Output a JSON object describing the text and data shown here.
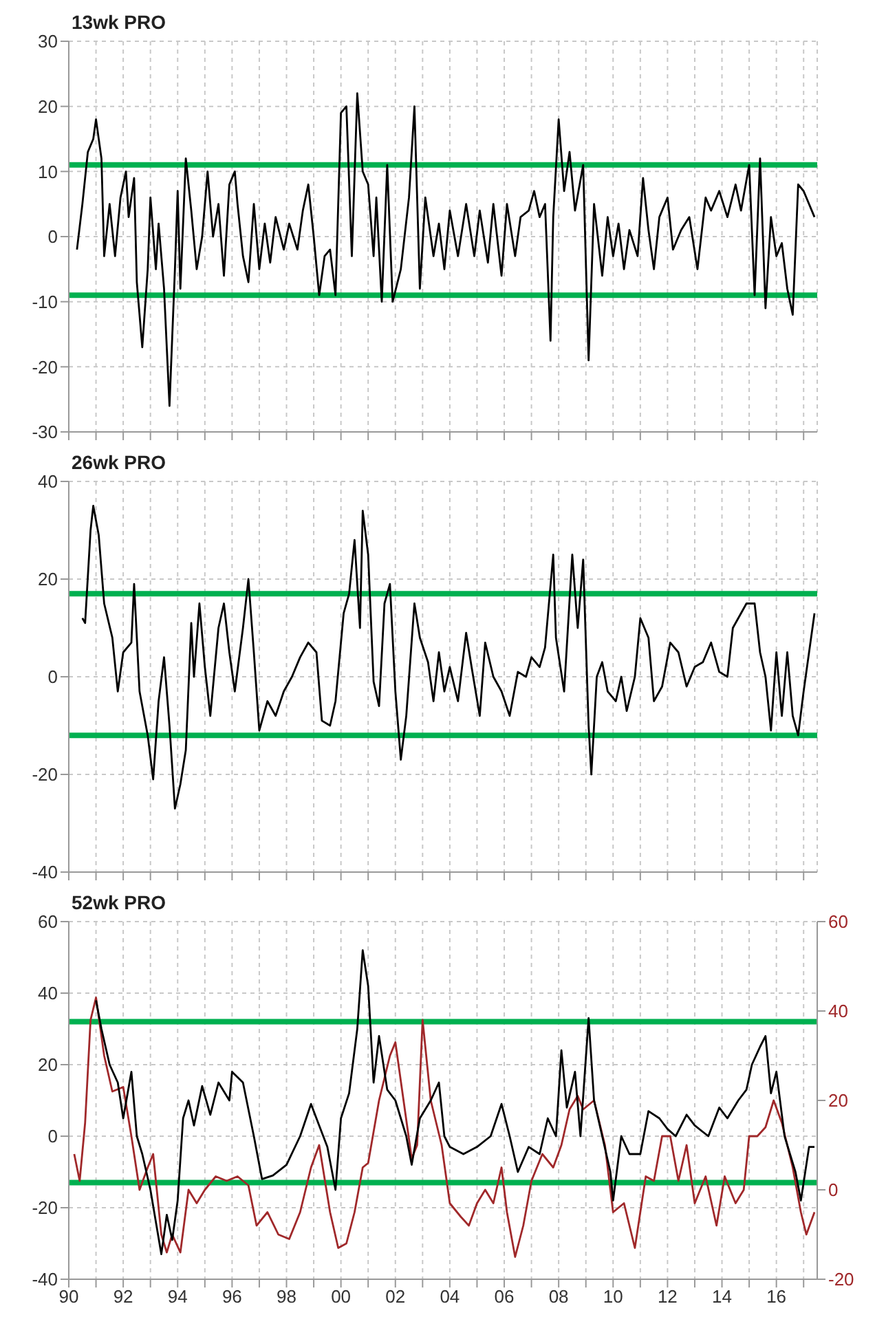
{
  "chart_data": [
    {
      "type": "line",
      "title": "13wk PRO",
      "tick_labels": "y",
      "grid": true,
      "xlim": [
        1990,
        2017.5
      ],
      "xticks": [
        {
          "value": 1990,
          "label": null
        },
        {
          "value": 1991,
          "label": null
        },
        {
          "value": 1992,
          "label": null
        },
        {
          "value": 1993,
          "label": null
        },
        {
          "value": 1994,
          "label": null
        },
        {
          "value": 1995,
          "label": null
        },
        {
          "value": 1996,
          "label": null
        },
        {
          "value": 1997,
          "label": null
        },
        {
          "value": 1998,
          "label": null
        },
        {
          "value": 1999,
          "label": null
        },
        {
          "value": 2000,
          "label": null
        },
        {
          "value": 2001,
          "label": null
        },
        {
          "value": 2002,
          "label": null
        },
        {
          "value": 2003,
          "label": null
        },
        {
          "value": 2004,
          "label": null
        },
        {
          "value": 2005,
          "label": null
        },
        {
          "value": 2006,
          "label": null
        },
        {
          "value": 2007,
          "label": null
        },
        {
          "value": 2008,
          "label": null
        },
        {
          "value": 2009,
          "label": null
        },
        {
          "value": 2010,
          "label": null
        },
        {
          "value": 2011,
          "label": null
        },
        {
          "value": 2012,
          "label": null
        },
        {
          "value": 2013,
          "label": null
        },
        {
          "value": 2014,
          "label": null
        },
        {
          "value": 2015,
          "label": null
        },
        {
          "value": 2016,
          "label": null
        },
        {
          "value": 2017,
          "label": null
        }
      ],
      "ylim": [
        -30,
        30
      ],
      "yticks": [
        -30,
        -20,
        -10,
        0,
        10,
        20,
        30
      ],
      "ref_lines": [
        {
          "axis": "y",
          "value": 11,
          "color": "#00b050"
        },
        {
          "axis": "y",
          "value": -9,
          "color": "#00b050"
        }
      ],
      "series": [
        {
          "color": "#000000",
          "x": [
            1990.3,
            1990.5,
            1990.7,
            1990.9,
            1991.0,
            1991.2,
            1991.3,
            1991.5,
            1991.7,
            1991.9,
            1992.1,
            1992.2,
            1992.4,
            1992.5,
            1992.7,
            1992.9,
            1993.0,
            1993.2,
            1993.3,
            1993.5,
            1993.7,
            1993.9,
            1994.0,
            1994.1,
            1994.3,
            1994.5,
            1994.7,
            1994.9,
            1995.1,
            1995.3,
            1995.5,
            1995.7,
            1995.9,
            1996.1,
            1996.2,
            1996.4,
            1996.6,
            1996.8,
            1997.0,
            1997.2,
            1997.4,
            1997.6,
            1997.9,
            1998.1,
            1998.4,
            1998.6,
            1998.8,
            1999.0,
            1999.2,
            1999.4,
            1999.6,
            1999.8,
            2000.0,
            2000.2,
            2000.4,
            2000.6,
            2000.8,
            2001.0,
            2001.2,
            2001.3,
            2001.5,
            2001.7,
            2001.9,
            2002.2,
            2002.5,
            2002.7,
            2002.9,
            2003.1,
            2003.4,
            2003.6,
            2003.8,
            2004.0,
            2004.3,
            2004.6,
            2004.9,
            2005.1,
            2005.4,
            2005.6,
            2005.9,
            2006.1,
            2006.4,
            2006.6,
            2006.9,
            2007.1,
            2007.3,
            2007.5,
            2007.7,
            2007.8,
            2008.0,
            2008.2,
            2008.4,
            2008.6,
            2008.9,
            2009.1,
            2009.3,
            2009.6,
            2009.8,
            2010.0,
            2010.2,
            2010.4,
            2010.6,
            2010.9,
            2011.1,
            2011.3,
            2011.5,
            2011.7,
            2012.0,
            2012.2,
            2012.5,
            2012.8,
            2013.1,
            2013.4,
            2013.6,
            2013.9,
            2014.2,
            2014.5,
            2014.7,
            2015.0,
            2015.2,
            2015.4,
            2015.6,
            2015.8,
            2016.0,
            2016.2,
            2016.4,
            2016.6,
            2016.8,
            2017.0,
            2017.4
          ],
          "values": [
            -2,
            5,
            13,
            15,
            18,
            12,
            -3,
            5,
            -3,
            6,
            10,
            3,
            9,
            -7,
            -17,
            -5,
            6,
            -5,
            2,
            -8,
            -26,
            -5,
            7,
            -8,
            12,
            4,
            -5,
            0,
            10,
            0,
            5,
            -6,
            8,
            10,
            5,
            -3,
            -7,
            5,
            -5,
            2,
            -4,
            3,
            -2,
            2,
            -2,
            4,
            8,
            0,
            -9,
            -3,
            -2,
            -9,
            19,
            20,
            -3,
            22,
            10,
            8,
            -3,
            6,
            -10,
            11,
            -10,
            -5,
            6,
            20,
            -8,
            6,
            -3,
            2,
            -5,
            4,
            -3,
            5,
            -3,
            4,
            -4,
            5,
            -6,
            5,
            -3,
            3,
            4,
            7,
            3,
            5,
            -16,
            3,
            18,
            7,
            13,
            4,
            11,
            -19,
            5,
            -6,
            3,
            -3,
            2,
            -5,
            1,
            -3,
            9,
            1,
            -5,
            3,
            6,
            -2,
            1,
            3,
            -5,
            6,
            4,
            7,
            3,
            8,
            4,
            11,
            -9,
            12,
            -11,
            3,
            -3,
            -1,
            -8,
            -12,
            8,
            7,
            3
          ]
        }
      ]
    },
    {
      "type": "line",
      "title": "26wk PRO",
      "tick_labels": "y",
      "grid": true,
      "xlim": [
        1990,
        2017.5
      ],
      "xticks": [
        {
          "value": 1990,
          "label": null
        },
        {
          "value": 1991,
          "label": null
        },
        {
          "value": 1992,
          "label": null
        },
        {
          "value": 1993,
          "label": null
        },
        {
          "value": 1994,
          "label": null
        },
        {
          "value": 1995,
          "label": null
        },
        {
          "value": 1996,
          "label": null
        },
        {
          "value": 1997,
          "label": null
        },
        {
          "value": 1998,
          "label": null
        },
        {
          "value": 1999,
          "label": null
        },
        {
          "value": 2000,
          "label": null
        },
        {
          "value": 2001,
          "label": null
        },
        {
          "value": 2002,
          "label": null
        },
        {
          "value": 2003,
          "label": null
        },
        {
          "value": 2004,
          "label": null
        },
        {
          "value": 2005,
          "label": null
        },
        {
          "value": 2006,
          "label": null
        },
        {
          "value": 2007,
          "label": null
        },
        {
          "value": 2008,
          "label": null
        },
        {
          "value": 2009,
          "label": null
        },
        {
          "value": 2010,
          "label": null
        },
        {
          "value": 2011,
          "label": null
        },
        {
          "value": 2012,
          "label": null
        },
        {
          "value": 2013,
          "label": null
        },
        {
          "value": 2014,
          "label": null
        },
        {
          "value": 2015,
          "label": null
        },
        {
          "value": 2016,
          "label": null
        },
        {
          "value": 2017,
          "label": null
        }
      ],
      "ylim": [
        -40,
        40
      ],
      "yticks": [
        -40,
        -20,
        0,
        20,
        40
      ],
      "ref_lines": [
        {
          "axis": "y",
          "value": 17,
          "color": "#00b050"
        },
        {
          "axis": "y",
          "value": -12,
          "color": "#00b050"
        }
      ],
      "series": [
        {
          "color": "#000000",
          "x": [
            1990.5,
            1990.6,
            1990.8,
            1990.9,
            1991.1,
            1991.3,
            1991.6,
            1991.8,
            1992.0,
            1992.3,
            1992.4,
            1992.6,
            1992.9,
            1993.1,
            1993.3,
            1993.5,
            1993.7,
            1993.9,
            1994.1,
            1994.3,
            1994.5,
            1994.6,
            1994.8,
            1995.0,
            1995.2,
            1995.5,
            1995.7,
            1995.9,
            1996.1,
            1996.4,
            1996.6,
            1996.8,
            1997.0,
            1997.3,
            1997.6,
            1997.9,
            1998.2,
            1998.5,
            1998.8,
            1999.1,
            1999.3,
            1999.6,
            1999.8,
            2000.1,
            2000.3,
            2000.5,
            2000.7,
            2000.8,
            2001.0,
            2001.2,
            2001.4,
            2001.6,
            2001.8,
            2002.0,
            2002.2,
            2002.4,
            2002.7,
            2002.9,
            2003.2,
            2003.4,
            2003.6,
            2003.8,
            2004.0,
            2004.3,
            2004.6,
            2004.8,
            2005.1,
            2005.3,
            2005.6,
            2005.9,
            2006.2,
            2006.5,
            2006.8,
            2007.0,
            2007.3,
            2007.5,
            2007.8,
            2007.9,
            2008.2,
            2008.5,
            2008.7,
            2008.9,
            2009.1,
            2009.2,
            2009.4,
            2009.6,
            2009.8,
            2010.1,
            2010.3,
            2010.5,
            2010.8,
            2011.0,
            2011.3,
            2011.5,
            2011.8,
            2012.1,
            2012.4,
            2012.7,
            2013.0,
            2013.3,
            2013.6,
            2013.9,
            2014.2,
            2014.4,
            2014.7,
            2014.9,
            2015.2,
            2015.4,
            2015.6,
            2015.8,
            2016.0,
            2016.2,
            2016.4,
            2016.6,
            2016.8,
            2017.0,
            2017.4
          ],
          "values": [
            12,
            11,
            30,
            35,
            29,
            15,
            8,
            -3,
            5,
            7,
            19,
            -3,
            -12,
            -21,
            -5,
            4,
            -10,
            -27,
            -22,
            -15,
            11,
            0,
            15,
            2,
            -8,
            10,
            15,
            5,
            -3,
            10,
            20,
            5,
            -11,
            -5,
            -8,
            -3,
            0,
            4,
            7,
            5,
            -9,
            -10,
            -5,
            13,
            17,
            28,
            10,
            34,
            25,
            -1,
            -6,
            15,
            19,
            -3,
            -17,
            -8,
            15,
            8,
            3,
            -5,
            5,
            -3,
            2,
            -5,
            9,
            2,
            -8,
            7,
            0,
            -3,
            -8,
            1,
            0,
            4,
            2,
            6,
            25,
            8,
            -3,
            25,
            10,
            24,
            -10,
            -20,
            0,
            3,
            -3,
            -5,
            0,
            -7,
            0,
            12,
            8,
            -5,
            -2,
            7,
            5,
            -2,
            2,
            3,
            7,
            1,
            0,
            10,
            13,
            15,
            15,
            5,
            0,
            -11,
            5,
            -8,
            5,
            -8,
            -12,
            -3,
            13
          ]
        }
      ]
    },
    {
      "type": "line",
      "title": "52wk PRO",
      "grid": true,
      "xlim": [
        1990,
        2017.5
      ],
      "xticks": [
        {
          "value": 1990,
          "label": "90"
        },
        {
          "value": 1991,
          "label": null
        },
        {
          "value": 1992,
          "label": "92"
        },
        {
          "value": 1993,
          "label": null
        },
        {
          "value": 1994,
          "label": "94"
        },
        {
          "value": 1995,
          "label": null
        },
        {
          "value": 1996,
          "label": "96"
        },
        {
          "value": 1997,
          "label": null
        },
        {
          "value": 1998,
          "label": "98"
        },
        {
          "value": 1999,
          "label": null
        },
        {
          "value": 2000,
          "label": "00"
        },
        {
          "value": 2001,
          "label": null
        },
        {
          "value": 2002,
          "label": "02"
        },
        {
          "value": 2003,
          "label": null
        },
        {
          "value": 2004,
          "label": "04"
        },
        {
          "value": 2005,
          "label": null
        },
        {
          "value": 2006,
          "label": "06"
        },
        {
          "value": 2007,
          "label": null
        },
        {
          "value": 2008,
          "label": "08"
        },
        {
          "value": 2009,
          "label": null
        },
        {
          "value": 2010,
          "label": "10"
        },
        {
          "value": 2011,
          "label": null
        },
        {
          "value": 2012,
          "label": "12"
        },
        {
          "value": 2013,
          "label": null
        },
        {
          "value": 2014,
          "label": "14"
        },
        {
          "value": 2015,
          "label": null
        },
        {
          "value": 2016,
          "label": "16"
        },
        {
          "value": 2017,
          "label": null
        }
      ],
      "ylim": [
        -40,
        60
      ],
      "yticks": [
        -40,
        -20,
        0,
        20,
        40,
        60
      ],
      "y2lim": [
        -20,
        60
      ],
      "y2ticks": [
        -20,
        0,
        20,
        40,
        60
      ],
      "ref_lines": [
        {
          "axis": "y",
          "value": 32,
          "color": "#00b050"
        },
        {
          "axis": "y",
          "value": -13,
          "color": "#00b050"
        }
      ],
      "series": [
        {
          "color": "#a0282a",
          "axis": "y2",
          "x": [
            1990.2,
            1990.4,
            1990.6,
            1990.8,
            1991.0,
            1991.3,
            1991.6,
            1992.0,
            1992.3,
            1992.6,
            1992.9,
            1993.1,
            1993.4,
            1993.6,
            1993.8,
            1994.1,
            1994.4,
            1994.7,
            1995.0,
            1995.4,
            1995.8,
            1996.2,
            1996.6,
            1996.9,
            1997.3,
            1997.7,
            1998.1,
            1998.5,
            1998.9,
            1999.2,
            1999.6,
            1999.9,
            2000.2,
            2000.5,
            2000.8,
            2001.0,
            2001.4,
            2001.8,
            2002.0,
            2002.3,
            2002.6,
            2002.8,
            2003.0,
            2003.3,
            2003.7,
            2004.0,
            2004.4,
            2004.7,
            2005.0,
            2005.3,
            2005.6,
            2005.9,
            2006.1,
            2006.4,
            2006.7,
            2007.0,
            2007.4,
            2007.8,
            2008.1,
            2008.4,
            2008.7,
            2008.9,
            2009.3,
            2009.7,
            2010.0,
            2010.4,
            2010.8,
            2011.2,
            2011.5,
            2011.8,
            2012.1,
            2012.4,
            2012.7,
            2013.0,
            2013.4,
            2013.8,
            2014.1,
            2014.5,
            2014.8,
            2015.0,
            2015.3,
            2015.6,
            2015.9,
            2016.2,
            2016.6,
            2016.9,
            2017.1,
            2017.4
          ],
          "values": [
            8,
            2,
            15,
            38,
            43,
            30,
            22,
            23,
            12,
            0,
            5,
            8,
            -10,
            -14,
            -10,
            -14,
            0,
            -3,
            0,
            3,
            2,
            3,
            1,
            -8,
            -5,
            -10,
            -11,
            -5,
            5,
            10,
            -5,
            -13,
            -12,
            -5,
            5,
            6,
            20,
            30,
            33,
            20,
            7,
            10,
            38,
            20,
            10,
            -3,
            -6,
            -8,
            -3,
            0,
            -3,
            5,
            -5,
            -15,
            -8,
            2,
            8,
            5,
            10,
            18,
            21,
            18,
            20,
            10,
            -5,
            -3,
            -13,
            3,
            2,
            12,
            12,
            2,
            10,
            -3,
            3,
            -8,
            3,
            -3,
            0,
            12,
            12,
            14,
            20,
            15,
            5,
            -5,
            -10,
            -5
          ]
        },
        {
          "color": "#000000",
          "x": [
            1991.0,
            1991.2,
            1991.5,
            1991.8,
            1992.0,
            1992.3,
            1992.5,
            1992.7,
            1993.0,
            1993.4,
            1993.6,
            1993.8,
            1994.0,
            1994.2,
            1994.4,
            1994.6,
            1994.9,
            1995.2,
            1995.5,
            1995.9,
            1996.0,
            1996.4,
            1996.8,
            1997.1,
            1997.5,
            1998.0,
            1998.5,
            1998.9,
            1999.2,
            1999.5,
            1999.8,
            2000.0,
            2000.3,
            2000.6,
            2000.8,
            2001.0,
            2001.2,
            2001.4,
            2001.7,
            2002.0,
            2002.4,
            2002.6,
            2002.9,
            2003.3,
            2003.6,
            2003.8,
            2004.0,
            2004.5,
            2005.0,
            2005.5,
            2005.9,
            2006.2,
            2006.5,
            2006.9,
            2007.3,
            2007.6,
            2007.9,
            2008.1,
            2008.3,
            2008.6,
            2008.8,
            2009.1,
            2009.3,
            2009.6,
            2009.9,
            2010.0,
            2010.3,
            2010.6,
            2011.0,
            2011.3,
            2011.7,
            2012.0,
            2012.3,
            2012.7,
            2013.0,
            2013.5,
            2013.9,
            2014.2,
            2014.6,
            2014.9,
            2015.1,
            2015.4,
            2015.6,
            2015.8,
            2016.0,
            2016.3,
            2016.5,
            2016.7,
            2016.9,
            2017.1,
            2017.2,
            2017.4
          ],
          "values": [
            38,
            30,
            20,
            15,
            5,
            18,
            0,
            -5,
            -15,
            -33,
            -22,
            -29,
            -18,
            5,
            10,
            3,
            14,
            6,
            15,
            10,
            18,
            15,
            0,
            -12,
            -11,
            -8,
            0,
            9,
            3,
            -3,
            -15,
            5,
            12,
            30,
            52,
            42,
            15,
            28,
            13,
            10,
            0,
            -8,
            5,
            10,
            15,
            0,
            -3,
            -5,
            -3,
            0,
            9,
            0,
            -10,
            -3,
            -5,
            5,
            0,
            24,
            8,
            18,
            0,
            33,
            10,
            0,
            -10,
            -18,
            0,
            -5,
            -5,
            7,
            5,
            2,
            0,
            6,
            3,
            0,
            8,
            5,
            10,
            13,
            20,
            25,
            28,
            12,
            18,
            0,
            -5,
            -10,
            -18,
            -8,
            -3,
            -3
          ]
        }
      ]
    }
  ]
}
